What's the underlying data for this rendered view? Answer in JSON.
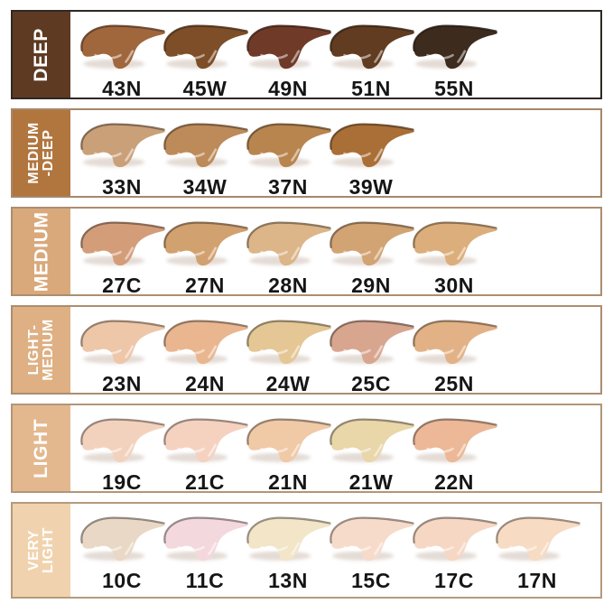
{
  "chart_data": {
    "type": "table",
    "description": "Foundation shade chart: smear swatches grouped by depth range",
    "text_color": "#151515",
    "group_text_color": "#ffffff",
    "groups": [
      {
        "name": "DEEP",
        "label_lines": [
          "DEEP"
        ],
        "block_color": "#5e3a22",
        "border_color": "#2e2823",
        "shades": [
          {
            "code": "43N",
            "color": "#a0663c"
          },
          {
            "code": "45W",
            "color": "#7d4e27"
          },
          {
            "code": "49N",
            "color": "#6f3b28"
          },
          {
            "code": "51N",
            "color": "#613c20"
          },
          {
            "code": "55N",
            "color": "#3d2b1e"
          }
        ]
      },
      {
        "name": "MEDIUM-DEEP",
        "label_lines": [
          "MEDIUM",
          "-DEEP"
        ],
        "block_color": "#b1753e",
        "border_color": "#a5876a",
        "shades": [
          {
            "code": "33N",
            "color": "#caa078"
          },
          {
            "code": "34W",
            "color": "#bd8a59"
          },
          {
            "code": "37N",
            "color": "#b8854e"
          },
          {
            "code": "39W",
            "color": "#aa6f36"
          }
        ]
      },
      {
        "name": "MEDIUM",
        "label_lines": [
          "MEDIUM"
        ],
        "block_color": "#d9a97b",
        "border_color": "#ab8e70",
        "shades": [
          {
            "code": "27C",
            "color": "#d49d7a"
          },
          {
            "code": "27N",
            "color": "#d2a170"
          },
          {
            "code": "28N",
            "color": "#dcb588"
          },
          {
            "code": "29N",
            "color": "#d2a373"
          },
          {
            "code": "30N",
            "color": "#dcae7b"
          }
        ]
      },
      {
        "name": "LIGHT-MEDIUM",
        "label_lines": [
          "LIGHT-",
          "MEDIUM"
        ],
        "block_color": "#deb083",
        "border_color": "#ab8e70",
        "shades": [
          {
            "code": "23N",
            "color": "#eec6a8"
          },
          {
            "code": "24N",
            "color": "#e9b690"
          },
          {
            "code": "24W",
            "color": "#e4c795"
          },
          {
            "code": "25C",
            "color": "#d8a68f"
          },
          {
            "code": "25N",
            "color": "#e2b286"
          }
        ]
      },
      {
        "name": "LIGHT",
        "label_lines": [
          "LIGHT"
        ],
        "block_color": "#e3b88e",
        "border_color": "#b29678",
        "shades": [
          {
            "code": "19C",
            "color": "#f3d2bd"
          },
          {
            "code": "21C",
            "color": "#f5d2c0"
          },
          {
            "code": "21N",
            "color": "#f0c9a7"
          },
          {
            "code": "21W",
            "color": "#e9d6a9"
          },
          {
            "code": "22N",
            "color": "#ecb897"
          }
        ]
      },
      {
        "name": "VERY LIGHT",
        "label_lines": [
          "VERY",
          "LIGHT"
        ],
        "block_color": "#f0d3ae",
        "border_color": "#b59a7d",
        "shades": [
          {
            "code": "10C",
            "color": "#e9d8c5"
          },
          {
            "code": "11C",
            "color": "#f3d8dd"
          },
          {
            "code": "13N",
            "color": "#f2e5c8"
          },
          {
            "code": "15C",
            "color": "#f7dbca"
          },
          {
            "code": "17C",
            "color": "#f5d7c3"
          },
          {
            "code": "17N",
            "color": "#f7dbc3"
          }
        ]
      }
    ]
  }
}
